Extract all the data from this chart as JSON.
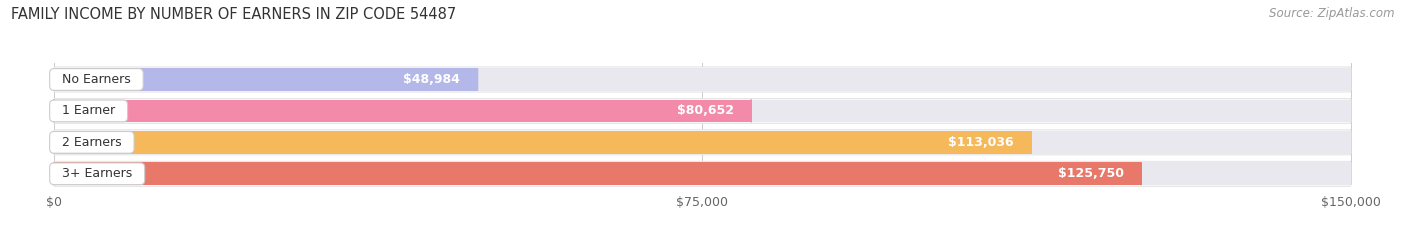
{
  "title": "FAMILY INCOME BY NUMBER OF EARNERS IN ZIP CODE 54487",
  "source": "Source: ZipAtlas.com",
  "categories": [
    "No Earners",
    "1 Earner",
    "2 Earners",
    "3+ Earners"
  ],
  "values": [
    48984,
    80652,
    113036,
    125750
  ],
  "bar_colors": [
    "#b3b8e8",
    "#f48aaa",
    "#f5b85a",
    "#e8796a"
  ],
  "bar_bg_color": "#e8e8ee",
  "row_bg_color": "#f7f7f9",
  "xlim": [
    0,
    150000
  ],
  "xticks": [
    0,
    75000,
    150000
  ],
  "xtick_labels": [
    "$0",
    "$75,000",
    "$150,000"
  ],
  "value_labels": [
    "$48,984",
    "$80,652",
    "$113,036",
    "$125,750"
  ],
  "title_fontsize": 10.5,
  "source_fontsize": 8.5,
  "label_fontsize": 9,
  "tick_fontsize": 9,
  "background_color": "#ffffff"
}
